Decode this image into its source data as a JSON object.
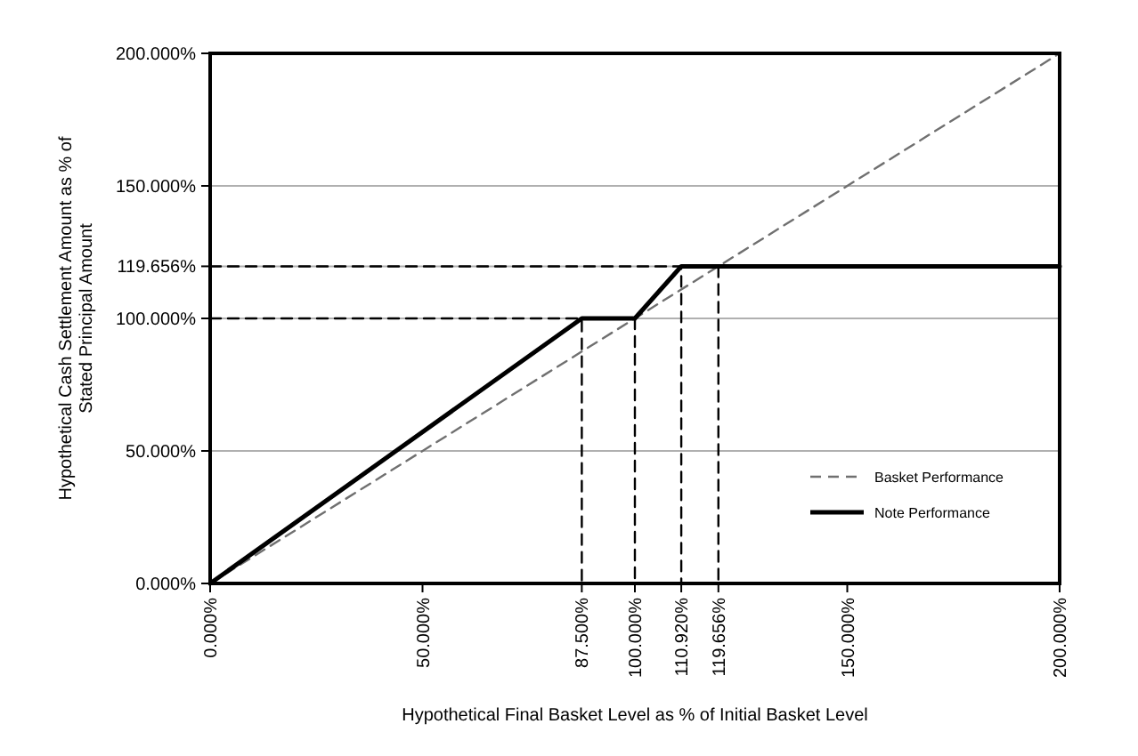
{
  "chart_data": {
    "type": "line",
    "xlabel": "Hypothetical Final Basket Level as % of Initial Basket Level",
    "ylabel": "Hypothetical Cash Settlement Amount as % of\nStated Principal Amount",
    "xlim": [
      0,
      200
    ],
    "ylim": [
      0,
      200
    ],
    "xticks": [
      {
        "value": 0,
        "label": "0.000%"
      },
      {
        "value": 50,
        "label": "50.000%"
      },
      {
        "value": 87.5,
        "label": "87.500%"
      },
      {
        "value": 100,
        "label": "100.000%"
      },
      {
        "value": 110.92,
        "label": "110.920%"
      },
      {
        "value": 119.656,
        "label": "119.656%"
      },
      {
        "value": 150,
        "label": "150.000%"
      },
      {
        "value": 200,
        "label": "200.000%"
      }
    ],
    "yticks": [
      {
        "value": 0,
        "label": "0.000%"
      },
      {
        "value": 50,
        "label": "50.000%"
      },
      {
        "value": 100,
        "label": "100.000%"
      },
      {
        "value": 119.656,
        "label": "119.656%"
      },
      {
        "value": 150,
        "label": "150.000%"
      },
      {
        "value": 200,
        "label": "200.000%"
      }
    ],
    "grid": "y",
    "legend": "bottom right",
    "marker": "none",
    "series": [
      {
        "name": "Basket Performance",
        "color": "#707070",
        "line_style": "dashed",
        "x": [
          0,
          200
        ],
        "values": [
          0,
          200
        ]
      },
      {
        "name": "Note Performance",
        "color": "#000000",
        "line_style": "solid",
        "x": [
          0,
          87.5,
          100,
          110.92,
          200
        ],
        "values": [
          0,
          100,
          100,
          119.656,
          119.656
        ]
      },
      {
        "color": "#000000",
        "line_style": "dashed",
        "x": [
          0,
          87.5,
          87.5
        ],
        "values": [
          100,
          100,
          0
        ]
      },
      {
        "color": "#000000",
        "line_style": "dashed",
        "x": [
          100,
          100
        ],
        "values": [
          100,
          0
        ]
      },
      {
        "color": "#000000",
        "line_style": "dashed",
        "x": [
          0,
          110.92,
          110.92
        ],
        "values": [
          119.656,
          119.656,
          0
        ]
      },
      {
        "color": "#000000",
        "line_style": "dashed",
        "x": [
          119.656,
          119.656
        ],
        "values": [
          119.656,
          0
        ]
      }
    ]
  }
}
